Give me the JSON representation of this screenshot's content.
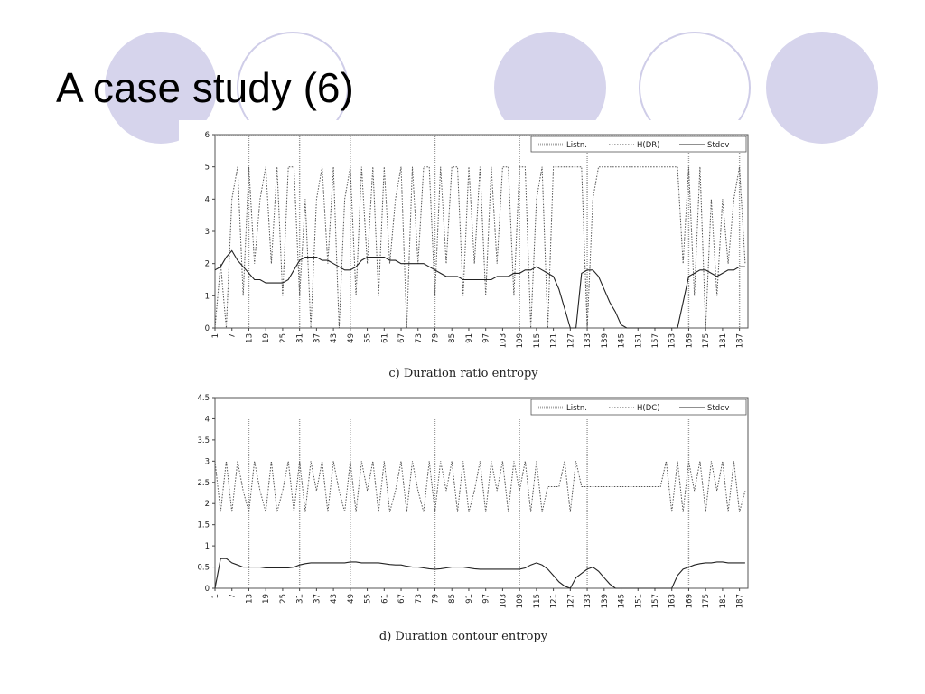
{
  "slide": {
    "title": "A case study (6)",
    "colors": {
      "circle_fill": "#d6d4ec",
      "circle_ring": "#cfcde8"
    }
  },
  "chart_data": [
    {
      "type": "line",
      "caption": "c) Duration ratio entropy",
      "ylim": [
        0,
        6
      ],
      "yticks": [
        0,
        1,
        2,
        3,
        4,
        5,
        6
      ],
      "xlim": [
        1,
        190
      ],
      "xticks": [
        1,
        7,
        13,
        19,
        25,
        31,
        37,
        43,
        49,
        55,
        61,
        67,
        73,
        79,
        85,
        91,
        97,
        103,
        109,
        115,
        121,
        127,
        133,
        139,
        145,
        151,
        157,
        163,
        169,
        175,
        181,
        187
      ],
      "legend": {
        "placement": "top-right",
        "entries": [
          "Listn.",
          "H(DR)",
          "Stdev"
        ]
      },
      "series": [
        {
          "name": "Listn.",
          "style": "spikes",
          "baseline": 6,
          "x": [
            13,
            31,
            49,
            79,
            109,
            133,
            169,
            187
          ],
          "values": [
            0,
            0,
            0,
            0,
            0,
            0,
            0,
            0
          ]
        },
        {
          "name": "H(DR)",
          "style": "dotted",
          "x": [
            1,
            3,
            5,
            7,
            9,
            11,
            13,
            15,
            17,
            19,
            21,
            23,
            25,
            27,
            29,
            31,
            33,
            35,
            37,
            39,
            41,
            43,
            45,
            47,
            49,
            51,
            53,
            55,
            57,
            59,
            61,
            63,
            65,
            67,
            69,
            71,
            73,
            75,
            77,
            79,
            81,
            83,
            85,
            87,
            89,
            91,
            93,
            95,
            97,
            99,
            101,
            103,
            105,
            107,
            109,
            111,
            113,
            115,
            117,
            119,
            121,
            123,
            125,
            127,
            129,
            131,
            133,
            135,
            137,
            139,
            141,
            143,
            145,
            147,
            149,
            151,
            153,
            155,
            157,
            159,
            161,
            163,
            165,
            167,
            169,
            171,
            173,
            175,
            177,
            179,
            181,
            183,
            185,
            187,
            189
          ],
          "values": [
            0,
            2,
            0,
            4,
            5,
            1,
            5,
            2,
            4,
            5,
            2,
            5,
            1,
            5,
            5,
            1,
            4,
            0,
            4,
            5,
            2,
            5,
            0,
            4,
            5,
            1,
            5,
            2,
            5,
            1,
            5,
            2,
            4,
            5,
            0,
            5,
            2,
            5,
            5,
            1,
            5,
            2,
            5,
            5,
            1,
            5,
            2,
            5,
            1,
            5,
            2,
            5,
            5,
            1,
            5,
            5,
            0,
            4,
            5,
            0,
            5,
            5,
            5,
            5,
            5,
            5,
            0,
            4,
            5,
            5,
            5,
            5,
            5,
            5,
            5,
            5,
            5,
            5,
            5,
            5,
            5,
            5,
            5,
            2,
            5,
            1,
            5,
            0,
            4,
            1,
            4,
            2,
            4,
            5,
            2
          ]
        },
        {
          "name": "Stdev",
          "style": "solid",
          "x": [
            1,
            3,
            5,
            7,
            9,
            11,
            13,
            15,
            17,
            19,
            21,
            23,
            25,
            27,
            29,
            31,
            33,
            35,
            37,
            39,
            41,
            43,
            45,
            47,
            49,
            51,
            53,
            55,
            57,
            59,
            61,
            63,
            65,
            67,
            69,
            71,
            73,
            75,
            77,
            79,
            81,
            83,
            85,
            87,
            89,
            91,
            93,
            95,
            97,
            99,
            101,
            103,
            105,
            107,
            109,
            111,
            113,
            115,
            117,
            119,
            121,
            123,
            125,
            127,
            129,
            131,
            133,
            135,
            137,
            139,
            141,
            143,
            145,
            147,
            149,
            151,
            153,
            155,
            157,
            159,
            161,
            163,
            165,
            167,
            169,
            171,
            173,
            175,
            177,
            179,
            181,
            183,
            185,
            187,
            189
          ],
          "values": [
            1.8,
            1.9,
            2.2,
            2.4,
            2.1,
            1.9,
            1.7,
            1.5,
            1.5,
            1.4,
            1.4,
            1.4,
            1.4,
            1.5,
            1.8,
            2.1,
            2.2,
            2.2,
            2.2,
            2.1,
            2.1,
            2.0,
            1.9,
            1.8,
            1.8,
            1.9,
            2.1,
            2.2,
            2.2,
            2.2,
            2.2,
            2.1,
            2.1,
            2.0,
            2.0,
            2.0,
            2.0,
            2.0,
            1.9,
            1.8,
            1.7,
            1.6,
            1.6,
            1.6,
            1.5,
            1.5,
            1.5,
            1.5,
            1.5,
            1.5,
            1.6,
            1.6,
            1.6,
            1.7,
            1.7,
            1.8,
            1.8,
            1.9,
            1.8,
            1.7,
            1.6,
            1.2,
            0.6,
            0.0,
            0.0,
            1.7,
            1.8,
            1.8,
            1.6,
            1.2,
            0.8,
            0.5,
            0.1,
            0.0,
            0.0,
            0.0,
            0.0,
            0.0,
            0.0,
            0.0,
            0.0,
            0.0,
            0.0,
            0.8,
            1.6,
            1.7,
            1.8,
            1.8,
            1.7,
            1.6,
            1.7,
            1.8,
            1.8,
            1.9,
            1.9
          ]
        }
      ]
    },
    {
      "type": "line",
      "caption": "d) Duration contour entropy",
      "ylim": [
        0,
        4.5
      ],
      "yticks": [
        0,
        0.5,
        1,
        1.5,
        2,
        2.5,
        3,
        3.5,
        4,
        4.5
      ],
      "xlim": [
        1,
        190
      ],
      "xticks": [
        1,
        7,
        13,
        19,
        25,
        31,
        37,
        43,
        49,
        55,
        61,
        67,
        73,
        79,
        85,
        91,
        97,
        103,
        109,
        115,
        121,
        127,
        133,
        139,
        145,
        151,
        157,
        163,
        169,
        175,
        181,
        187
      ],
      "legend": {
        "placement": "top-right",
        "entries": [
          "Listn.",
          "H(DC)",
          "Stdev"
        ]
      },
      "series": [
        {
          "name": "Listn.",
          "style": "spikes",
          "baseline": 0,
          "x": [
            13,
            31,
            49,
            79,
            109,
            133,
            169
          ],
          "values": [
            4,
            4,
            4,
            4,
            4,
            4,
            4
          ]
        },
        {
          "name": "H(DC)",
          "style": "dotted",
          "x": [
            1,
            3,
            5,
            7,
            9,
            11,
            13,
            15,
            17,
            19,
            21,
            23,
            25,
            27,
            29,
            31,
            33,
            35,
            37,
            39,
            41,
            43,
            45,
            47,
            49,
            51,
            53,
            55,
            57,
            59,
            61,
            63,
            65,
            67,
            69,
            71,
            73,
            75,
            77,
            79,
            81,
            83,
            85,
            87,
            89,
            91,
            93,
            95,
            97,
            99,
            101,
            103,
            105,
            107,
            109,
            111,
            113,
            115,
            117,
            119,
            121,
            123,
            125,
            127,
            129,
            131,
            133,
            135,
            137,
            139,
            141,
            143,
            145,
            147,
            149,
            151,
            153,
            155,
            157,
            159,
            161,
            163,
            165,
            167,
            169,
            171,
            173,
            175,
            177,
            179,
            181,
            183,
            185,
            187,
            189
          ],
          "values": [
            3.0,
            1.8,
            3.0,
            1.8,
            3.0,
            2.3,
            1.8,
            3.0,
            2.3,
            1.8,
            3.0,
            1.8,
            2.3,
            3.0,
            1.8,
            3.0,
            1.8,
            3.0,
            2.3,
            3.0,
            1.8,
            3.0,
            2.3,
            1.8,
            3.0,
            1.8,
            3.0,
            2.3,
            3.0,
            1.8,
            3.0,
            1.8,
            2.3,
            3.0,
            1.8,
            3.0,
            2.3,
            1.8,
            3.0,
            1.8,
            3.0,
            2.3,
            3.0,
            1.8,
            3.0,
            1.8,
            2.3,
            3.0,
            1.8,
            3.0,
            2.3,
            3.0,
            1.8,
            3.0,
            2.3,
            3.0,
            1.8,
            3.0,
            1.8,
            2.4,
            2.4,
            2.4,
            3.0,
            1.8,
            3.0,
            2.4,
            2.4,
            2.4,
            2.4,
            2.4,
            2.4,
            2.4,
            2.4,
            2.4,
            2.4,
            2.4,
            2.4,
            2.4,
            2.4,
            2.4,
            3.0,
            1.8,
            3.0,
            1.8,
            3.0,
            2.3,
            3.0,
            1.8,
            3.0,
            2.3,
            3.0,
            1.8,
            3.0,
            1.8,
            2.3
          ]
        },
        {
          "name": "Stdev",
          "style": "solid",
          "x": [
            1,
            3,
            5,
            7,
            9,
            11,
            13,
            15,
            17,
            19,
            21,
            23,
            25,
            27,
            29,
            31,
            33,
            35,
            37,
            39,
            41,
            43,
            45,
            47,
            49,
            51,
            53,
            55,
            57,
            59,
            61,
            63,
            65,
            67,
            69,
            71,
            73,
            75,
            77,
            79,
            81,
            83,
            85,
            87,
            89,
            91,
            93,
            95,
            97,
            99,
            101,
            103,
            105,
            107,
            109,
            111,
            113,
            115,
            117,
            119,
            121,
            123,
            125,
            127,
            129,
            131,
            133,
            135,
            137,
            139,
            141,
            143,
            145,
            147,
            149,
            151,
            153,
            155,
            157,
            159,
            161,
            163,
            165,
            167,
            169,
            171,
            173,
            175,
            177,
            179,
            181,
            183,
            185,
            187,
            189
          ],
          "values": [
            0.0,
            0.7,
            0.7,
            0.6,
            0.55,
            0.5,
            0.5,
            0.5,
            0.5,
            0.48,
            0.48,
            0.48,
            0.48,
            0.48,
            0.5,
            0.55,
            0.58,
            0.6,
            0.6,
            0.6,
            0.6,
            0.6,
            0.6,
            0.6,
            0.62,
            0.62,
            0.6,
            0.6,
            0.6,
            0.6,
            0.58,
            0.56,
            0.55,
            0.55,
            0.52,
            0.5,
            0.5,
            0.48,
            0.46,
            0.45,
            0.46,
            0.48,
            0.5,
            0.5,
            0.5,
            0.48,
            0.46,
            0.45,
            0.45,
            0.45,
            0.45,
            0.45,
            0.45,
            0.45,
            0.45,
            0.48,
            0.55,
            0.6,
            0.55,
            0.45,
            0.3,
            0.15,
            0.05,
            0.0,
            0.25,
            0.35,
            0.45,
            0.5,
            0.4,
            0.25,
            0.1,
            0.0,
            0.0,
            0.0,
            0.0,
            0.0,
            0.0,
            0.0,
            0.0,
            0.0,
            0.0,
            0.0,
            0.3,
            0.45,
            0.5,
            0.55,
            0.58,
            0.6,
            0.6,
            0.62,
            0.62,
            0.6,
            0.6,
            0.6,
            0.6
          ]
        }
      ]
    }
  ]
}
